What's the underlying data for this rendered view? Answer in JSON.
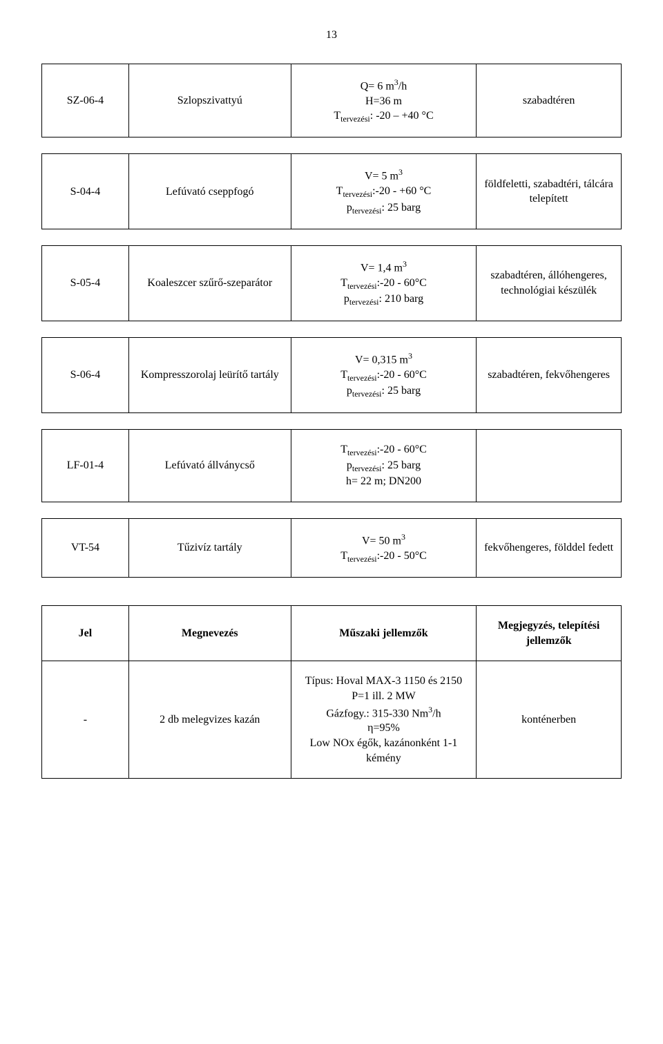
{
  "page_number": "13",
  "table1": {
    "rows": [
      {
        "c0": "SZ-06-4",
        "c1": "Szlopszivattyú",
        "c2": "Q= 6 m³/h\nH=36 m\nTₜₑᵣᵥₑzéₛᵢ: -20 – +40 °C",
        "c3": "szabadtéren"
      },
      {
        "c0": "S-04-4",
        "c1": "Lefúvató cseppfogó",
        "c2": "V= 5 m³\nTₜₑᵣᵥₑzéₛᵢ:-20 - +60 °C\npₜₑᵣᵥₑzéₛᵢ: 25 barg",
        "c3": "földfeletti, szabadtéri, tálcára telepített"
      },
      {
        "c0": "S-05-4",
        "c1": "Koaleszcer szűrő-szeparátor",
        "c2": "V= 1,4 m³\nTₜₑᵣᵥₑzéₛᵢ:-20 - 60°C\npₜₑᵣᵥₑzéₛᵢ: 210 barg",
        "c3": "szabadtéren, állóhengeres, technológiai készülék"
      },
      {
        "c0": "S-06-4",
        "c1": "Kompresszorolaj leürítő tartály",
        "c2": "V= 0,315 m³\nTₜₑᵣᵥₑzéₛᵢ:-20 - 60°C\npₜₑᵣᵥₑzéₛᵢ: 25 barg",
        "c3": "szabadtéren, fekvőhengeres"
      },
      {
        "c0": "LF-01-4",
        "c1": "Lefúvató állványcső",
        "c2": "Tₜₑᵣᵥₑzéₛᵢ:-20 - 60°C\npₜₑᵣᵥₑzéₛᵢ: 25 barg\nh= 22 m; DN200",
        "c3": ""
      },
      {
        "c0": "VT-54",
        "c1": "Tűzivíz tartály",
        "c2": "V= 50 m³\nTₜₑᵣᵥₑzéₛᵢ:-20 - 50°C",
        "c3": "fekvőhengeres, földdel fedett"
      }
    ]
  },
  "table2": {
    "header": {
      "h0": "Jel",
      "h1": "Megnevezés",
      "h2": "Műszaki jellemzők",
      "h3": "Megjegyzés, telepítési jellemzők"
    },
    "rows": [
      {
        "c0": "-",
        "c1": "2 db melegvizes kazán",
        "c2": "Típus: Hoval MAX-3 1150 és 2150\nP=1 ill. 2 MW\nGázfogy.: 315-330 Nm³/h\nη=95%\nLow NOx égők, kazánonként 1-1 kémény",
        "c3": "konténerben"
      }
    ]
  },
  "style": {
    "font_family": "Times New Roman",
    "background_color": "#ffffff",
    "text_color": "#000000",
    "border_color": "#000000",
    "font_size_pt": 12
  }
}
